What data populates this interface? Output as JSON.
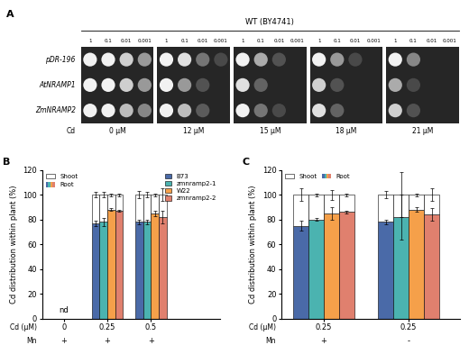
{
  "panel_a": {
    "label": "A",
    "strain": "WT (BY4741)",
    "dilutions": [
      "1",
      "0.1",
      "0.01",
      "0.001"
    ],
    "condition_label": "Cd",
    "conditions": [
      "0 μM",
      "12 μM",
      "15 μM",
      "18 μM",
      "21 μM"
    ],
    "rows": [
      "pDR-196",
      "AtNRAMP1",
      "ZmNRAMP2"
    ],
    "growth": [
      [
        [
          1,
          1,
          0.8,
          0.5
        ],
        [
          1,
          0.9,
          0.3,
          0.05
        ],
        [
          1,
          0.6,
          0.1,
          0
        ],
        [
          1,
          0.5,
          0.05,
          0
        ],
        [
          1,
          0.4,
          0,
          0
        ]
      ],
      [
        [
          1,
          1,
          0.8,
          0.5
        ],
        [
          1,
          0.5,
          0.1,
          0
        ],
        [
          0.9,
          0.2,
          0,
          0
        ],
        [
          0.8,
          0.1,
          0,
          0
        ],
        [
          0.6,
          0.05,
          0,
          0
        ]
      ],
      [
        [
          1,
          1,
          0.7,
          0.4
        ],
        [
          1,
          0.7,
          0.15,
          0
        ],
        [
          1,
          0.3,
          0.05,
          0
        ],
        [
          0.9,
          0.2,
          0,
          0
        ],
        [
          0.8,
          0.1,
          0,
          0
        ]
      ]
    ]
  },
  "chart_data": [
    {
      "type": "bar",
      "label": "B",
      "stacked": true,
      "ylabel": "Cd distribution within plant (%)",
      "categories": [
        "0",
        "0.25",
        "0.5"
      ],
      "second_row": [
        "+",
        "+",
        "+"
      ],
      "row_labels": [
        "Cd (μM)",
        "Mn"
      ],
      "ylim": [
        0,
        120
      ],
      "yticks": [
        0,
        20,
        40,
        60,
        80,
        100,
        120
      ],
      "shoot_color": "#ffffff",
      "layers": {
        "names": [
          "Shoot",
          "Root"
        ],
        "legend": "upper left"
      },
      "legend": "upper right",
      "annotations": [
        {
          "text": "nd",
          "category": 0
        }
      ],
      "series": [
        {
          "name": "B73",
          "color": "#4a6aa8",
          "root": [
            null,
            77,
            78
          ],
          "shoot": [
            null,
            23,
            22
          ],
          "root_err": [
            null,
            2,
            2
          ],
          "shoot_err": [
            null,
            2,
            3
          ]
        },
        {
          "name": "zmnramp2-1",
          "color": "#4bb3b0",
          "root": [
            null,
            78,
            78
          ],
          "shoot": [
            null,
            22,
            22
          ],
          "root_err": [
            null,
            3,
            2
          ],
          "shoot_err": [
            null,
            2,
            2
          ]
        },
        {
          "name": "W22",
          "color": "#f5a04a",
          "root": [
            null,
            88,
            85
          ],
          "shoot": [
            null,
            12,
            15
          ],
          "root_err": [
            null,
            1,
            2
          ],
          "shoot_err": [
            null,
            1,
            1
          ]
        },
        {
          "name": "zmnramp2-2",
          "color": "#e0806e",
          "root": [
            null,
            87,
            82
          ],
          "shoot": [
            null,
            13,
            18
          ],
          "root_err": [
            null,
            1,
            5
          ],
          "shoot_err": [
            null,
            1,
            5
          ]
        }
      ]
    },
    {
      "type": "bar",
      "label": "C",
      "stacked": true,
      "ylabel": "Cd distribution within plant (%)",
      "categories": [
        "0.25",
        "0.25"
      ],
      "second_row": [
        "+",
        "-"
      ],
      "row_labels": [
        "Cd (μM)",
        "Mn"
      ],
      "ylim": [
        0,
        120
      ],
      "yticks": [
        0,
        20,
        40,
        60,
        80,
        100,
        120
      ],
      "shoot_color": "#ffffff",
      "layers": {
        "names": [
          "Shoot",
          "Root"
        ],
        "legend": "upper left"
      },
      "series": [
        {
          "color": "#4a6aa8",
          "root": [
            75,
            78
          ],
          "shoot": [
            25,
            22
          ],
          "root_err": [
            4,
            2
          ],
          "shoot_err": [
            5,
            3
          ]
        },
        {
          "color": "#4bb3b0",
          "root": [
            80,
            82
          ],
          "shoot": [
            20,
            18
          ],
          "root_err": [
            1,
            18
          ],
          "shoot_err": [
            1,
            18
          ]
        },
        {
          "color": "#f5a04a",
          "root": [
            85,
            88
          ],
          "shoot": [
            15,
            12
          ],
          "root_err": [
            5,
            2
          ],
          "shoot_err": [
            4,
            1
          ]
        },
        {
          "color": "#e0806e",
          "root": [
            86,
            84
          ],
          "shoot": [
            14,
            16
          ],
          "root_err": [
            1,
            5
          ],
          "shoot_err": [
            1,
            5
          ]
        }
      ]
    }
  ]
}
